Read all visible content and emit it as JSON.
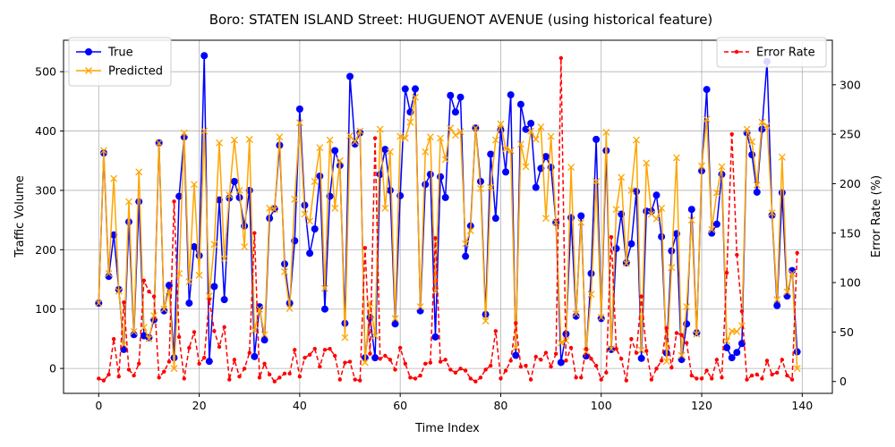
{
  "chart_data": {
    "type": "line",
    "title": "Boro: STATEN ISLAND Street: HUGUENOT AVENUE (using historical feature)",
    "xlabel": "Time Index",
    "ylabel": "Traffic Volume",
    "y2label": "Error Rate (%)",
    "xlim": [
      -7,
      146
    ],
    "ylim": [
      -42,
      553
    ],
    "y2lim": [
      -12,
      345
    ],
    "xticks": [
      0,
      20,
      40,
      60,
      80,
      100,
      120,
      140
    ],
    "yticks": [
      0,
      100,
      200,
      300,
      400,
      500
    ],
    "y2ticks": [
      0,
      50,
      100,
      150,
      200,
      250,
      300
    ],
    "grid": true,
    "legend_left": "upper-left",
    "legend_right": "upper-right",
    "colors": {
      "true": "#0000ff",
      "predicted": "#ffa500",
      "error": "#ff0000"
    },
    "series": [
      {
        "name": "True",
        "axis": "left",
        "marker": "circle",
        "line": "solid",
        "values": [
          110,
          363,
          155,
          225,
          133,
          32,
          247,
          57,
          281,
          55,
          52,
          82,
          380,
          97,
          140,
          18,
          290,
          390,
          110,
          205,
          190,
          527,
          12,
          138,
          284,
          116,
          287,
          315,
          288,
          240,
          300,
          20,
          104,
          48,
          253,
          269,
          376,
          176,
          110,
          215,
          437,
          275,
          194,
          235,
          324,
          100,
          290,
          367,
          342,
          76,
          492,
          378,
          397,
          18,
          86,
          18,
          327,
          369,
          300,
          75,
          291,
          471,
          432,
          471,
          97,
          310,
          327,
          53,
          323,
          288,
          460,
          432,
          457,
          189,
          240,
          405,
          315,
          91,
          361,
          253,
          402,
          331,
          461,
          22,
          445,
          403,
          413,
          305,
          337,
          357,
          339,
          246,
          10,
          58,
          254,
          88,
          257,
          21,
          160,
          386,
          84,
          367,
          32,
          202,
          260,
          178,
          210,
          298,
          17,
          265,
          265,
          292,
          222,
          26,
          198,
          227,
          15,
          75,
          268,
          60,
          333,
          470,
          228,
          243,
          327,
          35,
          18,
          27,
          42,
          397,
          360,
          297,
          403,
          517,
          258,
          106,
          296,
          122,
          165,
          28
        ]
      },
      {
        "name": "Predicted",
        "axis": "left",
        "marker": "x",
        "line": "solid",
        "values": [
          110,
          367,
          160,
          320,
          130,
          40,
          281,
          62,
          331,
          69,
          50,
          89,
          380,
          100,
          131,
          0,
          160,
          397,
          146,
          310,
          157,
          400,
          122,
          209,
          380,
          185,
          292,
          385,
          300,
          205,
          386,
          64,
          100,
          57,
          270,
          268,
          390,
          163,
          101,
          285,
          414,
          260,
          248,
          315,
          372,
          135,
          385,
          270,
          350,
          52,
          392,
          382,
          400,
          10,
          110,
          55,
          403,
          270,
          365,
          84,
          391,
          388,
          415,
          457,
          104,
          365,
          390,
          130,
          388,
          352,
          405,
          393,
          399,
          210,
          232,
          405,
          303,
          80,
          305,
          385,
          412,
          370,
          367,
          35,
          378,
          340,
          400,
          386,
          407,
          253,
          391,
          246,
          43,
          47,
          339,
          92,
          246,
          28,
          125,
          315,
          86,
          398,
          33,
          268,
          322,
          177,
          300,
          385,
          31,
          346,
          260,
          252,
          270,
          12,
          170,
          355,
          22,
          104,
          250,
          58,
          341,
          420,
          234,
          296,
          340,
          46,
          63,
          62,
          72,
          403,
          382,
          309,
          415,
          409,
          262,
          116,
          356,
          129,
          160,
          0
        ]
      },
      {
        "name": "Error Rate",
        "axis": "right",
        "marker": "dot",
        "line": "dashed",
        "values": [
          3,
          1,
          7,
          43,
          5,
          80,
          12,
          6,
          18,
          102,
          91,
          86,
          4,
          10,
          20,
          182,
          45,
          3,
          34,
          50,
          18,
          24,
          83,
          51,
          35,
          55,
          2,
          22,
          5,
          13,
          29,
          150,
          4,
          18,
          7,
          0,
          4,
          8,
          8,
          32,
          5,
          24,
          27,
          33,
          15,
          32,
          33,
          26,
          2,
          19,
          20,
          2,
          1,
          135,
          28,
          246,
          23,
          26,
          22,
          12,
          34,
          18,
          4,
          3,
          6,
          18,
          19,
          145,
          20,
          22,
          12,
          9,
          13,
          11,
          3,
          0,
          4,
          12,
          16,
          51,
          3,
          11,
          21,
          59,
          15,
          16,
          2,
          25,
          22,
          29,
          15,
          28,
          327,
          21,
          34,
          4,
          4,
          33,
          23,
          16,
          2,
          9,
          146,
          33,
          23,
          1,
          43,
          29,
          86,
          31,
          2,
          13,
          21,
          54,
          14,
          49,
          47,
          39,
          6,
          3,
          3,
          11,
          3,
          22,
          4,
          110,
          250,
          128,
          71,
          2,
          6,
          7,
          3,
          21,
          7,
          9,
          22,
          6,
          2,
          130
        ]
      }
    ]
  }
}
